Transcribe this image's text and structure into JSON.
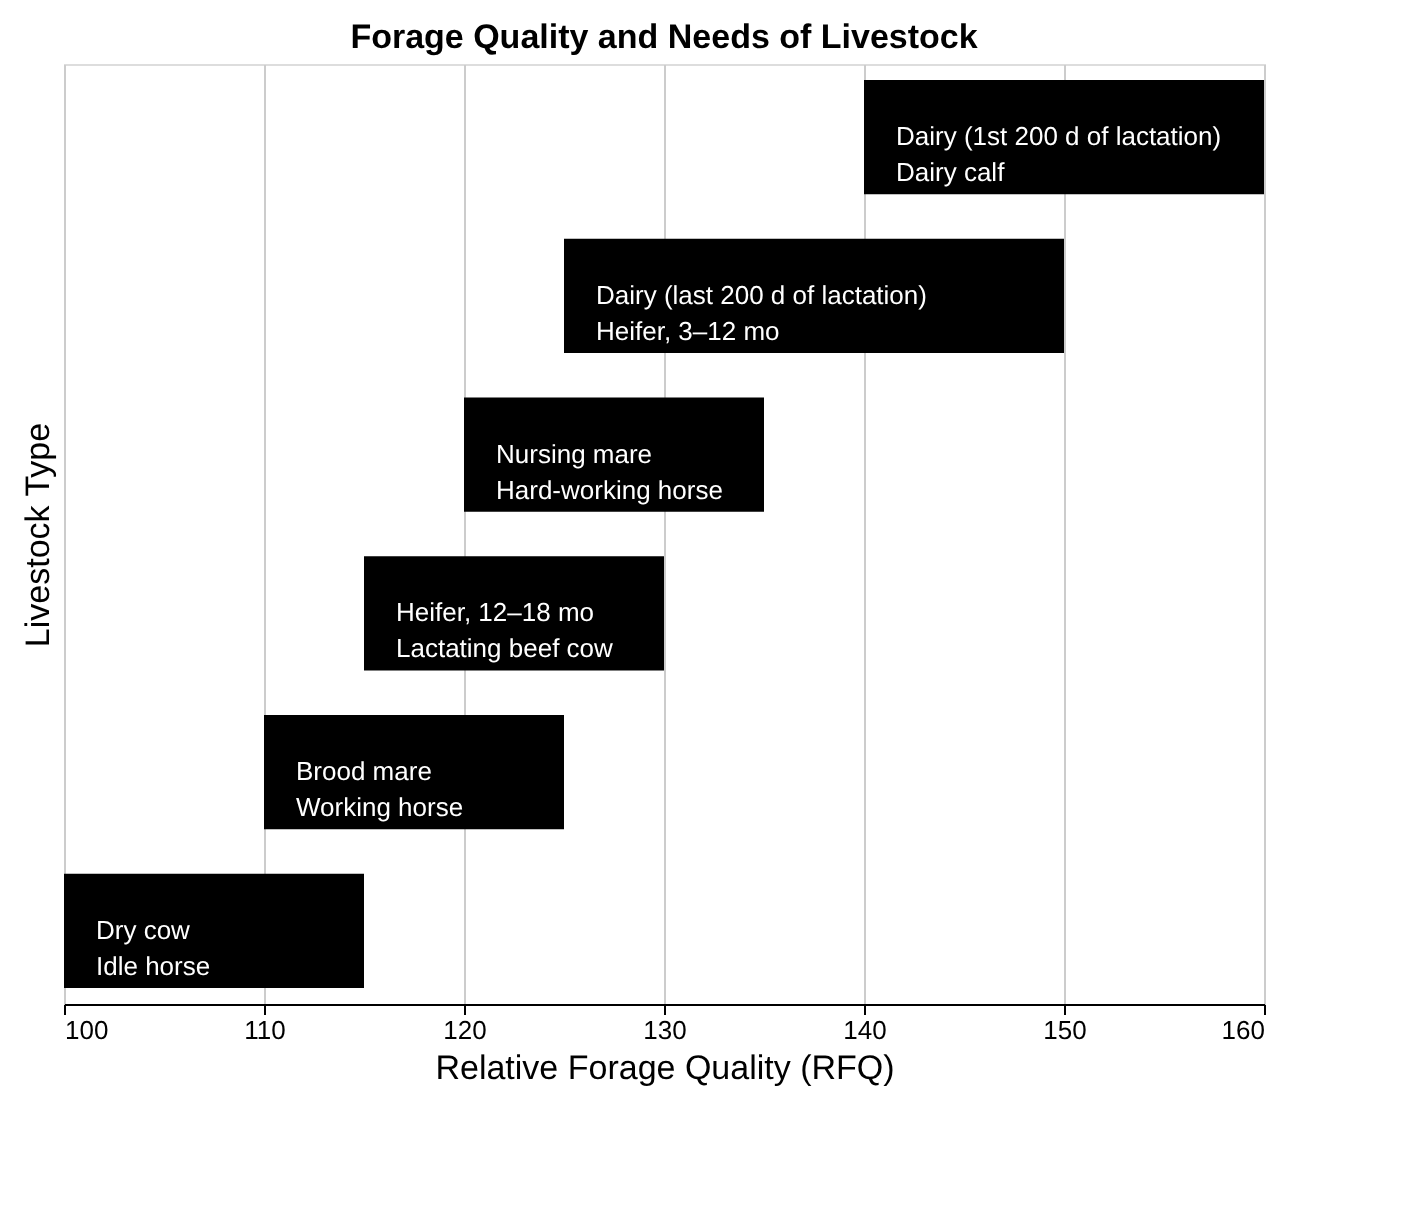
{
  "chart_data": {
    "type": "bar",
    "orientation": "horizontal",
    "title": "Forage Quality and Needs of Livestock",
    "xlabel": "Relative Forage Quality (RFQ)",
    "ylabel": "Livestock Type",
    "categories": [
      "Dairy (1st 200 d of lactation)\nDairy calf",
      "Dairy (last 200 d of lactation)\nHeifer, 3–12 mo",
      "Nursing mare\nHard-working horse",
      "Heifer, 12–18 mo\nLactating beef cow",
      "Brood mare\nWorking horse",
      "Dry cow\nIdle horse"
    ],
    "base": [
      140,
      125,
      120,
      115,
      110,
      100
    ],
    "values": [
      20,
      25,
      15,
      15,
      15,
      15
    ],
    "color": "#000000",
    "xlim": [
      100,
      160
    ],
    "xticks": [
      100,
      110,
      120,
      130,
      140,
      150,
      160
    ],
    "grid": "x"
  }
}
